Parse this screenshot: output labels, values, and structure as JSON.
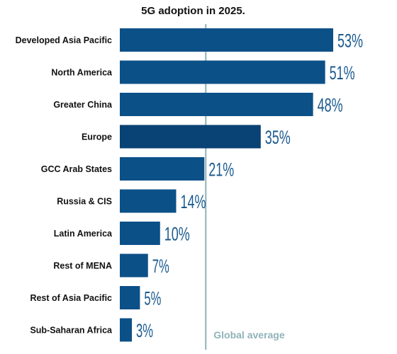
{
  "title": "5G adoption in 2025.",
  "chart_data": {
    "type": "bar",
    "orientation": "horizontal",
    "title": "5G adoption in 2025.",
    "categories": [
      "Developed Asia Pacific",
      "North America",
      "Greater China",
      "Europe",
      "GCC Arab States",
      "Russia & CIS",
      "Latin America",
      "Rest of MENA",
      "Rest of Asia Pacific",
      "Sub-Saharan Africa"
    ],
    "values": [
      53,
      51,
      48,
      35,
      21,
      14,
      10,
      7,
      5,
      3
    ],
    "value_labels": [
      "53%",
      "51%",
      "48%",
      "35%",
      "21%",
      "14%",
      "10%",
      "7%",
      "5%",
      "3%"
    ],
    "unit": "%",
    "xlim": [
      0,
      53
    ],
    "reference_line": {
      "label": "Global average",
      "value": 21
    },
    "grid": false,
    "colors": {
      "bar": "#0c5088",
      "bar_highlight": "#094274",
      "value_text": "#1a5a8f",
      "reference_line": "#8fb3b8"
    },
    "highlight_category": "Europe"
  }
}
